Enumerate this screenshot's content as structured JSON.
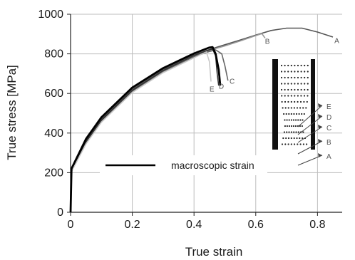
{
  "chart_data": {
    "type": "line",
    "xlabel": "True strain",
    "ylabel": "True stress  [MPa]",
    "xlim": [
      0,
      0.88
    ],
    "ylim": [
      0,
      1000
    ],
    "xticks": [
      0,
      0.2,
      0.4,
      0.6,
      0.8
    ],
    "xtick_labels": [
      "0",
      "0.2",
      "0.4",
      "0.6",
      "0.8"
    ],
    "yticks": [
      0,
      200,
      400,
      600,
      800,
      1000
    ],
    "ytick_labels": [
      "0",
      "200",
      "400",
      "600",
      "800",
      "1000"
    ],
    "grid": true,
    "legend": {
      "label": "macroscopic strain",
      "placement": "lower-center"
    },
    "series": [
      {
        "name": "A",
        "color": "#555555",
        "x": [
          0,
          0.003,
          0.05,
          0.1,
          0.2,
          0.3,
          0.4,
          0.45,
          0.5,
          0.55,
          0.6,
          0.65,
          0.7,
          0.75,
          0.8,
          0.85
        ],
        "y": [
          0,
          215,
          360,
          470,
          620,
          720,
          795,
          822,
          846,
          870,
          895,
          918,
          930,
          930,
          910,
          885
        ]
      },
      {
        "name": "B",
        "color": "#9a9a9a",
        "x": [
          0,
          0.003,
          0.05,
          0.1,
          0.2,
          0.3,
          0.4,
          0.45,
          0.5,
          0.55,
          0.6,
          0.62,
          0.63
        ],
        "y": [
          0,
          210,
          355,
          465,
          615,
          715,
          790,
          818,
          840,
          865,
          892,
          902,
          880
        ]
      },
      {
        "name": "C",
        "color": "#666666",
        "x": [
          0,
          0.003,
          0.05,
          0.1,
          0.2,
          0.3,
          0.4,
          0.45,
          0.47,
          0.49,
          0.5,
          0.51
        ],
        "y": [
          0,
          212,
          352,
          462,
          612,
          712,
          786,
          812,
          820,
          800,
          740,
          665
        ]
      },
      {
        "name": "D",
        "color": "#333333",
        "x": [
          0,
          0.003,
          0.05,
          0.1,
          0.2,
          0.3,
          0.4,
          0.45,
          0.46,
          0.47,
          0.475,
          0.48
        ],
        "y": [
          0,
          214,
          356,
          466,
          616,
          716,
          792,
          820,
          825,
          790,
          700,
          640
        ]
      },
      {
        "name": "E",
        "color": "#c8c8c8",
        "x": [
          0,
          0.003,
          0.05,
          0.1,
          0.2,
          0.3,
          0.4,
          0.44,
          0.45,
          0.455
        ],
        "y": [
          0,
          205,
          345,
          455,
          605,
          705,
          780,
          810,
          760,
          660
        ]
      },
      {
        "name": "macroscopic strain",
        "color": "#000000",
        "x": [
          0,
          0.003,
          0.05,
          0.1,
          0.2,
          0.3,
          0.4,
          0.45,
          0.46,
          0.47,
          0.48,
          0.485
        ],
        "y": [
          0,
          220,
          370,
          480,
          630,
          728,
          802,
          832,
          834,
          800,
          720,
          640
        ]
      }
    ],
    "annotations": [
      {
        "text": "A",
        "x": 0.855,
        "y": 855
      },
      {
        "text": "B",
        "x": 0.63,
        "y": 850
      },
      {
        "text": "C",
        "x": 0.515,
        "y": 650
      },
      {
        "text": "D",
        "x": 0.48,
        "y": 625
      },
      {
        "text": "E",
        "x": 0.45,
        "y": 610
      }
    ],
    "inset_labels": [
      "E",
      "D",
      "C",
      "B",
      "A"
    ]
  }
}
